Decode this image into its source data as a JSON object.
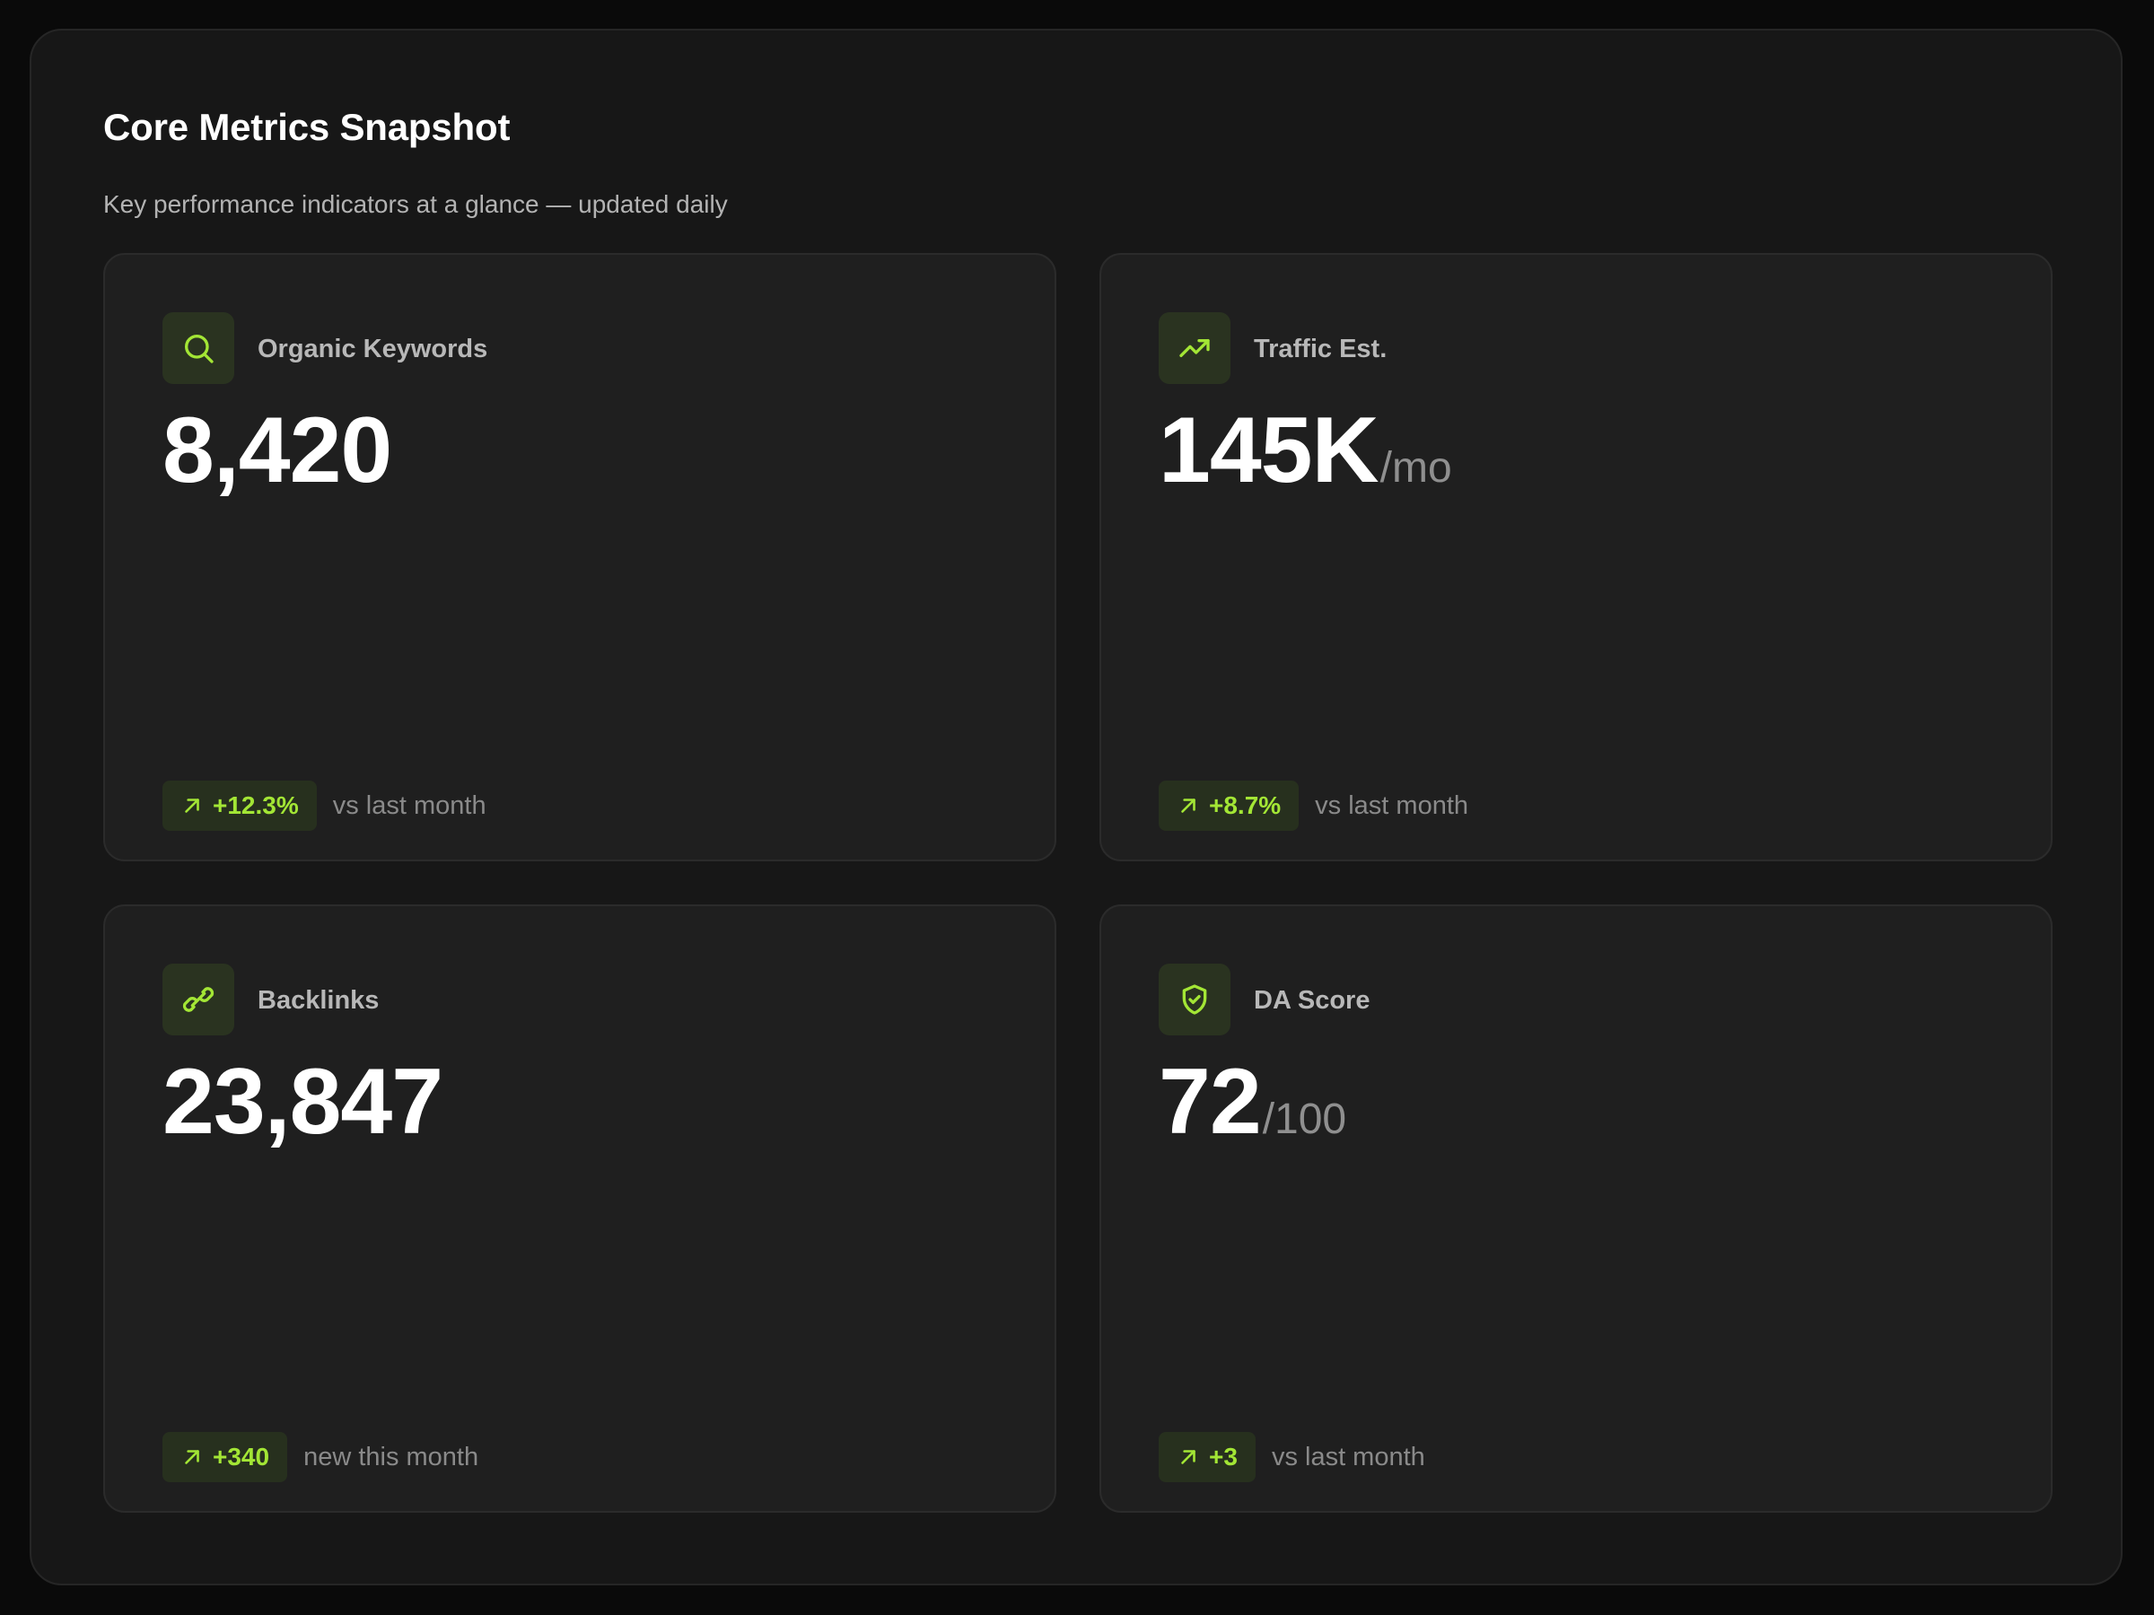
{
  "header": {
    "title": "Core Metrics Snapshot",
    "subtitle": "Key performance indicators at a glance — updated daily"
  },
  "colors": {
    "accent": "#a3e635",
    "icon_background": "#2a3320",
    "card_background": "#1f1f1f",
    "panel_background": "#171717",
    "page_background": "#0a0a0a"
  },
  "cards": [
    {
      "icon": "search-icon",
      "label": "Organic Keywords",
      "value": "8,420",
      "unit": "",
      "delta": "+12.3%",
      "delta_icon": "arrow-up-right-icon",
      "note": "vs last month"
    },
    {
      "icon": "trending-up-icon",
      "label": "Traffic Est.",
      "value": "145K",
      "unit": "/mo",
      "delta": "+8.7%",
      "delta_icon": "arrow-up-right-icon",
      "note": "vs last month"
    },
    {
      "icon": "link-icon",
      "label": "Backlinks",
      "value": "23,847",
      "unit": "",
      "delta": "+340",
      "delta_icon": "arrow-up-right-icon",
      "note": "new this month"
    },
    {
      "icon": "shield-check-icon",
      "label": "DA Score",
      "value": "72",
      "unit": "/100",
      "delta": "+3",
      "delta_icon": "arrow-up-right-icon",
      "note": "vs last month"
    }
  ]
}
